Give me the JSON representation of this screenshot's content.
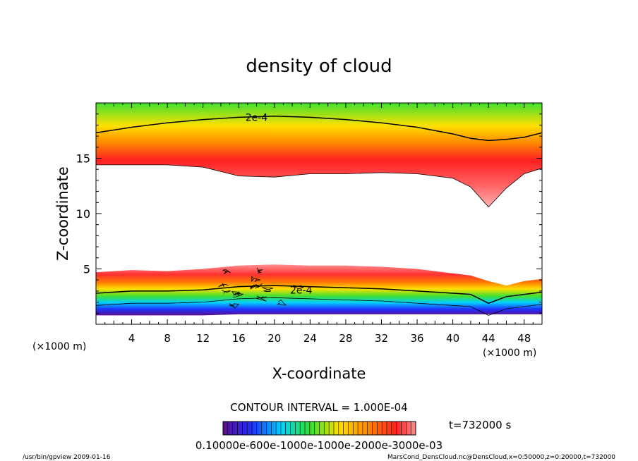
{
  "chart_data": {
    "type": "heatmap",
    "title": "density of cloud",
    "xlabel": "X-coordinate",
    "ylabel": "Z-coordinate",
    "x_unit_left": "(×1000 m)",
    "x_unit_right": "(×1000 m)",
    "xlim": [
      0,
      50
    ],
    "ylim": [
      0,
      20
    ],
    "x_ticks": [
      4,
      8,
      12,
      16,
      20,
      24,
      28,
      32,
      36,
      40,
      44,
      48
    ],
    "y_ticks": [
      5,
      10,
      15
    ],
    "contour_interval": "CONTOUR INTERVAL = 1.000E-04",
    "contour_labels": [
      {
        "text": "2e-4",
        "x": 18,
        "z": 18.7
      },
      {
        "text": "2e-4",
        "x": 23,
        "z": 3.1
      }
    ],
    "time_label": "t=732000 s",
    "colorbar_labels": "0.10000e-600e-1000e-1000e-2000e-3000e-03",
    "upper_layer": {
      "x": [
        0,
        4,
        8,
        12,
        16,
        20,
        24,
        28,
        32,
        36,
        40,
        42,
        44,
        46,
        48,
        50
      ],
      "top": [
        20,
        20,
        20,
        20,
        20,
        20,
        20,
        20,
        20,
        20,
        20,
        20,
        20,
        20,
        20,
        20
      ],
      "contour_2e4": [
        17.3,
        17.8,
        18.2,
        18.5,
        18.7,
        18.8,
        18.7,
        18.5,
        18.2,
        17.8,
        17.2,
        16.8,
        16.6,
        16.7,
        16.9,
        17.3
      ],
      "peak": [
        15.4,
        15.7,
        16.0,
        16.1,
        16.2,
        16.2,
        16.1,
        16.0,
        15.8,
        15.5,
        14.9,
        14.2,
        13.0,
        14.5,
        15.0,
        15.3
      ],
      "bottom": [
        14.4,
        14.4,
        14.4,
        14.2,
        13.4,
        13.3,
        13.6,
        13.6,
        13.7,
        13.6,
        13.2,
        12.4,
        10.6,
        12.3,
        13.6,
        14.1
      ]
    },
    "lower_layer": {
      "x": [
        0,
        4,
        8,
        12,
        16,
        20,
        24,
        28,
        32,
        36,
        40,
        42,
        44,
        46,
        48,
        50
      ],
      "top": [
        4.7,
        4.9,
        4.8,
        5.0,
        5.3,
        5.4,
        5.3,
        5.3,
        5.2,
        5.0,
        4.6,
        4.4,
        3.9,
        3.5,
        3.9,
        4.1
      ],
      "contour_2e4": [
        2.8,
        3.0,
        3.0,
        3.1,
        3.4,
        3.5,
        3.4,
        3.3,
        3.2,
        3.0,
        2.8,
        2.7,
        1.9,
        2.5,
        2.7,
        2.9
      ],
      "bottom": [
        0.8,
        0.8,
        0.8,
        0.8,
        0.9,
        0.9,
        0.9,
        0.9,
        0.9,
        0.9,
        0.9,
        0.9,
        0.9,
        0.9,
        0.9,
        0.9
      ]
    },
    "colors": {
      "outside": "#ffffff",
      "low": "#5a0f8c",
      "blue": "#2030ff",
      "cyan": "#00d0ff",
      "green": "#30e030",
      "yellow": "#ffe000",
      "orange": "#ff8a00",
      "red": "#ff2020",
      "pink": "#ff9090"
    }
  },
  "footer": {
    "left": "/usr/bin/gpview   2009-01-16",
    "right": "MarsCond_DensCloud.nc@DensCloud,x=0:50000,z=0:20000,t=732000"
  }
}
